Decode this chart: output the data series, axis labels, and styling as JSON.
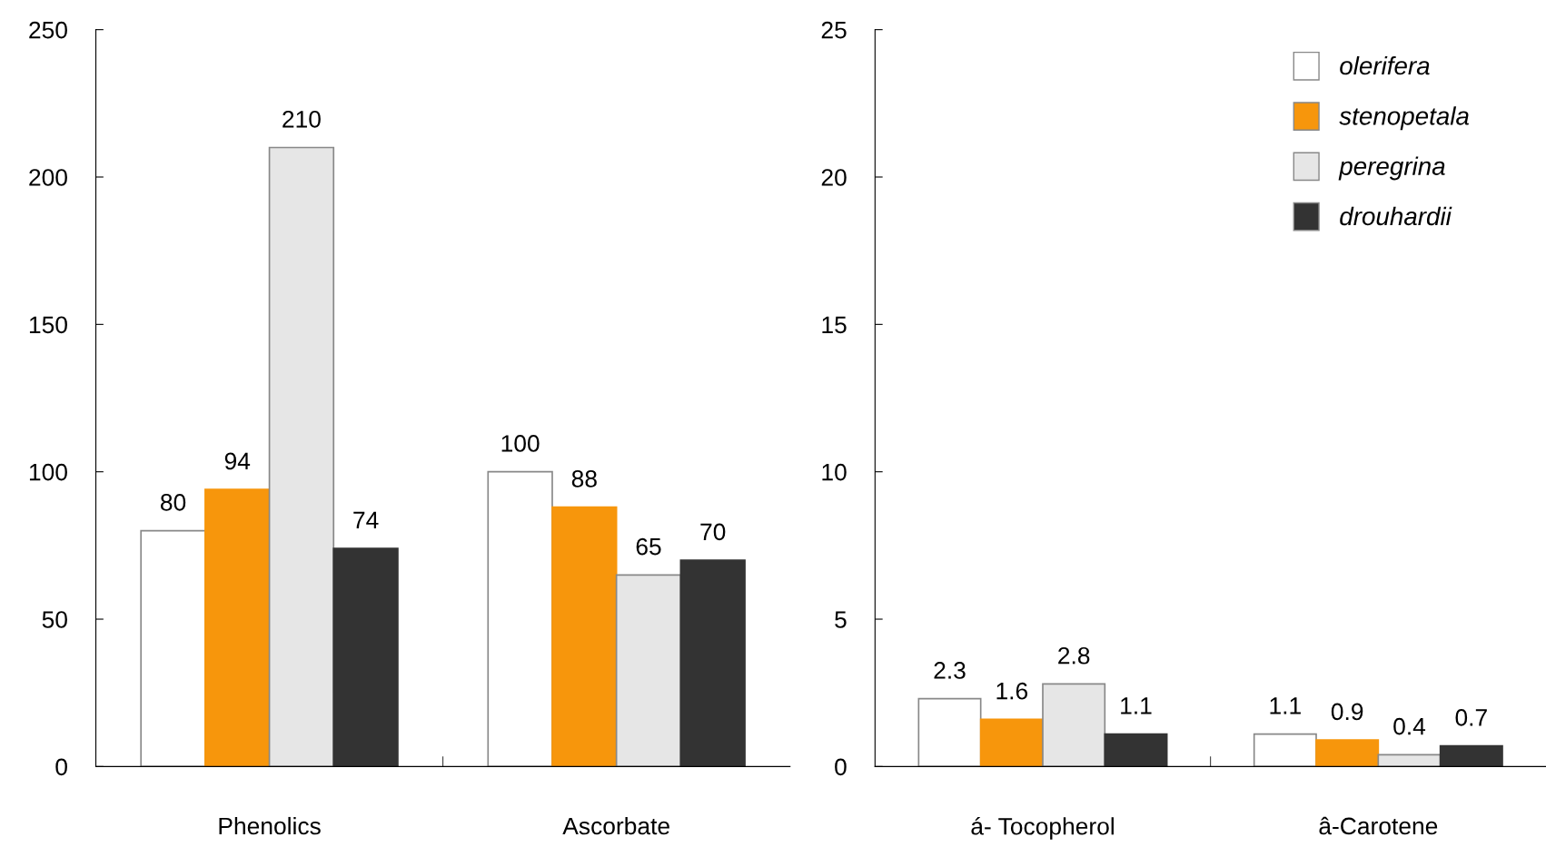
{
  "chart_data": [
    {
      "type": "bar",
      "categories": [
        "Phenolics",
        "Ascorbate"
      ],
      "series": [
        {
          "color": "#ffffff",
          "values": [
            80,
            100
          ]
        },
        {
          "color": "#f7960c",
          "values": [
            94,
            88
          ]
        },
        {
          "color": "#e6e6e6",
          "values": [
            210,
            65
          ]
        },
        {
          "color": "#333333",
          "values": [
            74,
            70
          ]
        }
      ],
      "ylim": [
        0,
        250
      ],
      "yticks": [
        0,
        50,
        100,
        150,
        200,
        250
      ],
      "data_labels": true,
      "grid": false,
      "legend": false
    },
    {
      "type": "bar",
      "categories": [
        "á- Tocopherol",
        "â-Carotene"
      ],
      "series": [
        {
          "name": "olerifera",
          "color": "#ffffff",
          "values": [
            2.3,
            1.1
          ]
        },
        {
          "name": "stenopetala",
          "color": "#f7960c",
          "values": [
            1.6,
            0.9
          ]
        },
        {
          "name": "peregrina",
          "color": "#e6e6e6",
          "values": [
            2.8,
            0.4
          ]
        },
        {
          "name": "drouhardii",
          "color": "#333333",
          "values": [
            1.1,
            0.7
          ]
        }
      ],
      "ylim": [
        0,
        25
      ],
      "yticks": [
        0,
        5,
        10,
        15,
        20,
        25
      ],
      "data_labels": true,
      "grid": false,
      "legend": "top right"
    }
  ]
}
